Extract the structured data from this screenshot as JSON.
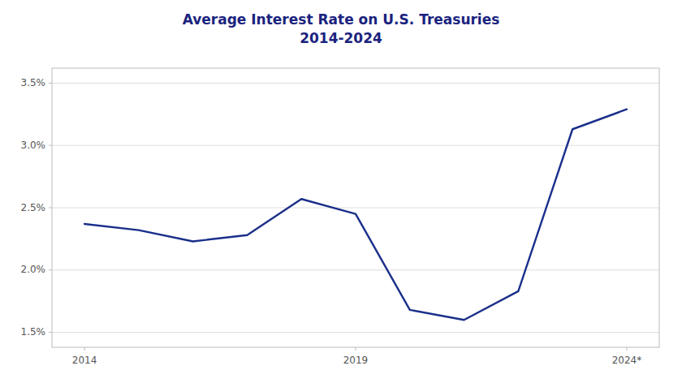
{
  "chart_data": {
    "type": "line",
    "title": "Average Interest Rate on U.S. Treasuries\n2014-2024",
    "x": [
      2014,
      2015,
      2016,
      2017,
      2018,
      2019,
      2020,
      2021,
      2022,
      2023,
      2024
    ],
    "values": [
      2.37,
      2.32,
      2.23,
      2.28,
      2.57,
      2.45,
      1.68,
      1.6,
      1.83,
      3.13,
      3.29
    ],
    "color": "#1a2f8a",
    "xlim": [
      2013.4,
      2024.6
    ],
    "xticks": [
      2014,
      2019,
      {
        "value": 2024,
        "label": "2024*"
      }
    ],
    "ylim": [
      1.38,
      3.62
    ],
    "yticks": [
      {
        "value": 1.5,
        "label": "1.5%"
      },
      {
        "value": 2.0,
        "label": "2.0%"
      },
      {
        "value": 2.5,
        "label": "2.5%"
      },
      {
        "value": 3.0,
        "label": "3.0%"
      },
      {
        "value": 3.5,
        "label": "3.5%"
      }
    ],
    "grid": true
  }
}
